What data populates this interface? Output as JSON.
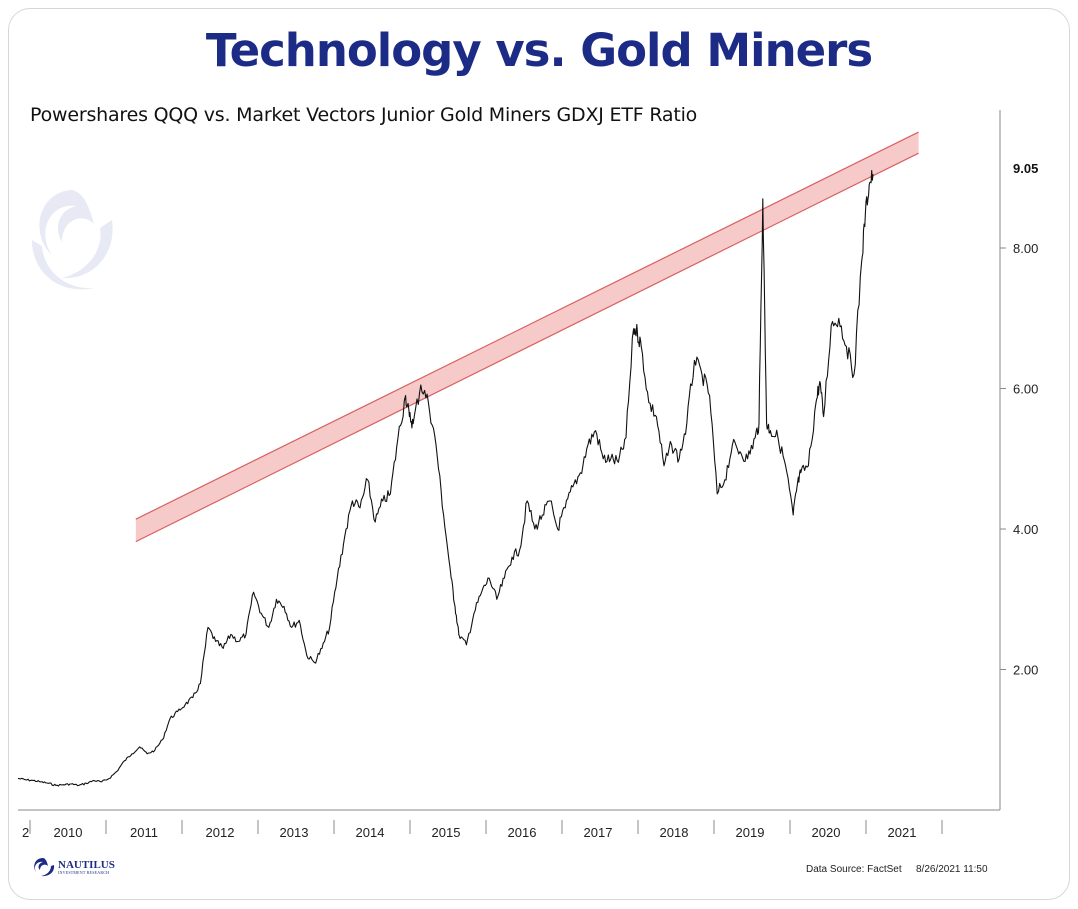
{
  "title": "Technology vs. Gold Miners",
  "subtitle": "Powershares QQQ vs. Market Vectors Junior Gold Miners GDXJ ETF Ratio",
  "footer": {
    "source": "Data Source: FactSet",
    "date": "8/26/2021 11:50"
  },
  "logo": {
    "name": "NAUTILUS",
    "tagline": "INVESTMENT RESEARCH"
  },
  "watermark": {
    "name": "NAUTILUS",
    "tagline": "INVESTMENT RESEARCH"
  },
  "colors": {
    "title": "#1c2c86",
    "line": "#111111",
    "channel_fill": "#f7caca",
    "channel_edge": "#d9605f",
    "axis": "#8a8a8a"
  },
  "chart_data": {
    "type": "line",
    "title": "Technology vs. Gold Miners",
    "subtitle": "Powershares QQQ vs. Market Vectors Junior Gold Miners GDXJ ETF Ratio",
    "xlabel": "",
    "ylabel": "",
    "x_tick_labels": [
      "2",
      "2010",
      "2011",
      "2012",
      "2013",
      "2014",
      "2015",
      "2016",
      "2017",
      "2018",
      "2019",
      "2020",
      "2021"
    ],
    "y_tick_labels": [
      "2.00",
      "4.00",
      "6.00",
      "8.00"
    ],
    "y_ticks": [
      2,
      4,
      6,
      8
    ],
    "last_value_label": "9.05",
    "last_value": 9.05,
    "xlim": [
      2009.9,
      2021.3
    ],
    "ylim": [
      0.0,
      10.0
    ],
    "grid": false,
    "series": [
      {
        "x": [
          2009.9,
          2010.0,
          2010.1,
          2010.2,
          2010.3,
          2010.4,
          2010.5,
          2010.6,
          2010.7,
          2010.8,
          2010.9,
          2011.0,
          2011.1,
          2011.2,
          2011.3,
          2011.4,
          2011.5,
          2011.6,
          2011.7,
          2011.8,
          2011.9,
          2012.0,
          2012.1,
          2012.2,
          2012.3,
          2012.4,
          2012.5,
          2012.6,
          2012.7,
          2012.8,
          2012.9,
          2013.0,
          2013.1,
          2013.2,
          2013.3,
          2013.4,
          2013.5,
          2013.6,
          2013.7,
          2013.8,
          2013.9,
          2014.0,
          2014.1,
          2014.2,
          2014.3,
          2014.4,
          2014.5,
          2014.6,
          2014.7,
          2014.8,
          2014.9,
          2015.0,
          2015.05,
          2015.1,
          2015.2,
          2015.3,
          2015.4,
          2015.5,
          2015.6,
          2015.65,
          2015.7,
          2015.8,
          2015.9,
          2016.0,
          2016.1,
          2016.2,
          2016.3,
          2016.4,
          2016.5,
          2016.6,
          2016.7,
          2016.8,
          2016.9,
          2017.0,
          2017.1,
          2017.2,
          2017.3,
          2017.4,
          2017.5,
          2017.6,
          2017.7,
          2017.8,
          2017.9,
          2018.0,
          2018.05,
          2018.1,
          2018.2,
          2018.3,
          2018.4,
          2018.5,
          2018.6,
          2018.7,
          2018.8,
          2018.9,
          2019.0,
          2019.1,
          2019.2,
          2019.3,
          2019.4,
          2019.5,
          2019.6,
          2019.65,
          2019.7,
          2019.75,
          2019.8,
          2019.9,
          2020.0,
          2020.1,
          2020.15,
          2020.2,
          2020.3,
          2020.4,
          2020.45,
          2020.5,
          2020.6,
          2020.7,
          2020.8,
          2020.9,
          2021.0,
          2021.05,
          2021.1,
          2021.15
        ],
        "y": [
          0.45,
          0.43,
          0.42,
          0.4,
          0.38,
          0.35,
          0.36,
          0.37,
          0.35,
          0.38,
          0.42,
          0.4,
          0.45,
          0.55,
          0.7,
          0.8,
          0.9,
          0.8,
          0.85,
          1.0,
          1.3,
          1.4,
          1.5,
          1.6,
          1.8,
          2.6,
          2.4,
          2.3,
          2.5,
          2.4,
          2.5,
          3.1,
          2.8,
          2.6,
          3.0,
          2.9,
          2.6,
          2.7,
          2.2,
          2.1,
          2.3,
          2.6,
          3.3,
          3.9,
          4.4,
          4.3,
          4.7,
          4.1,
          4.4,
          4.5,
          5.3,
          5.9,
          5.6,
          5.5,
          6.05,
          5.8,
          5.2,
          4.2,
          3.3,
          2.9,
          2.5,
          2.35,
          2.8,
          3.1,
          3.3,
          3.0,
          3.3,
          3.6,
          3.7,
          4.4,
          4.0,
          4.2,
          4.4,
          4.0,
          4.3,
          4.6,
          4.8,
          5.2,
          5.4,
          5.0,
          5.0,
          4.95,
          5.3,
          6.85,
          6.8,
          6.6,
          5.8,
          5.6,
          4.9,
          5.2,
          5.0,
          5.5,
          6.4,
          6.2,
          5.9,
          4.5,
          4.7,
          5.2,
          5.1,
          5.0,
          5.3,
          5.5,
          8.7,
          5.5,
          5.4,
          5.3,
          4.9,
          4.2,
          4.6,
          4.8,
          4.9,
          5.8,
          6.1,
          5.6,
          6.9,
          7.0,
          6.6,
          6.2,
          7.8,
          8.5,
          8.9,
          9.05
        ],
        "color": "#111111"
      }
    ],
    "annotations": [
      {
        "type": "channel",
        "x_start": 2011.45,
        "x_end": 2021.75,
        "y_lower_start": 3.82,
        "y_upper_start": 4.14,
        "y_lower_end": 9.35,
        "y_upper_end": 9.65
      }
    ]
  }
}
